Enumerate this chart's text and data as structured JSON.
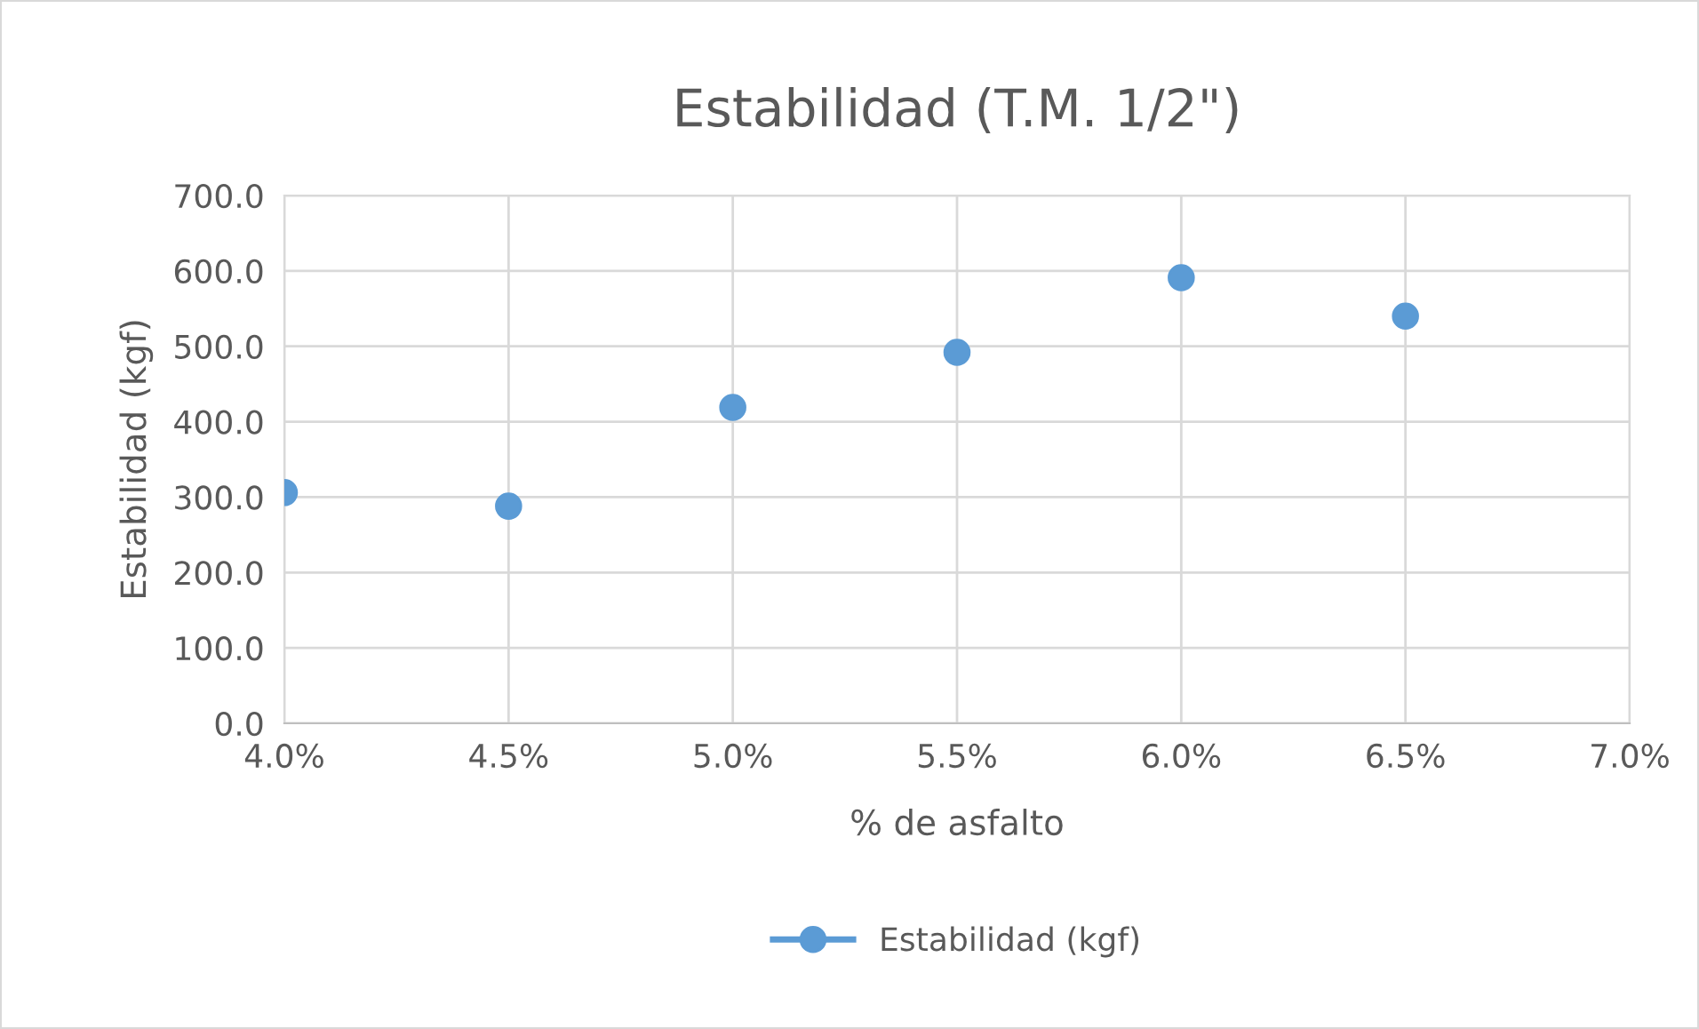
{
  "chart_data": {
    "type": "scatter",
    "title": "Estabilidad (T.M. 1/2\")",
    "xlabel": "% de asfalto",
    "ylabel": "Estabilidad (kgf)",
    "x": [
      4.0,
      4.5,
      5.0,
      5.5,
      6.0,
      6.5
    ],
    "series": [
      {
        "name": "Estabilidad (kgf)",
        "color": "#5b9bd5",
        "values": [
          306,
          288,
          419,
          492,
          591,
          540
        ]
      }
    ],
    "xlim": [
      4.0,
      7.0
    ],
    "xticks": [
      {
        "value": 4.0,
        "label": "4.0%"
      },
      {
        "value": 4.5,
        "label": "4.5%"
      },
      {
        "value": 5.0,
        "label": "5.0%"
      },
      {
        "value": 5.5,
        "label": "5.5%"
      },
      {
        "value": 6.0,
        "label": "6.0%"
      },
      {
        "value": 6.5,
        "label": "6.5%"
      },
      {
        "value": 7.0,
        "label": "7.0%"
      }
    ],
    "ylim": [
      0,
      700
    ],
    "yticks": [
      {
        "value": 0,
        "label": "0.0"
      },
      {
        "value": 100,
        "label": "100.0"
      },
      {
        "value": 200,
        "label": "200.0"
      },
      {
        "value": 300,
        "label": "300.0"
      },
      {
        "value": 400,
        "label": "400.0"
      },
      {
        "value": 500,
        "label": "500.0"
      },
      {
        "value": 600,
        "label": "600.0"
      },
      {
        "value": 700,
        "label": "700.0"
      }
    ],
    "grid": true,
    "legend": "bottom",
    "marker": "circle"
  }
}
